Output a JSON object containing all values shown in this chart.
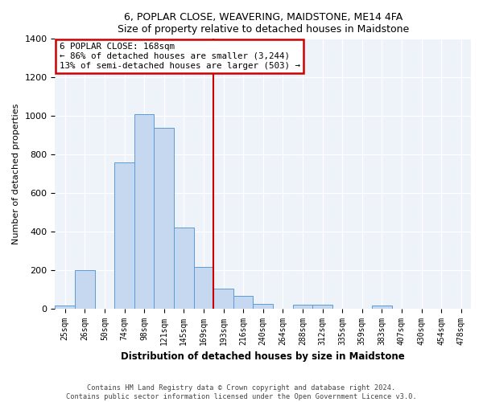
{
  "title": "6, POPLAR CLOSE, WEAVERING, MAIDSTONE, ME14 4FA",
  "subtitle": "Size of property relative to detached houses in Maidstone",
  "xlabel": "Distribution of detached houses by size in Maidstone",
  "ylabel": "Number of detached properties",
  "categories": [
    "25sqm",
    "26sqm",
    "50sqm",
    "74sqm",
    "98sqm",
    "121sqm",
    "145sqm",
    "169sqm",
    "193sqm",
    "216sqm",
    "240sqm",
    "264sqm",
    "288sqm",
    "312sqm",
    "335sqm",
    "359sqm",
    "383sqm",
    "407sqm",
    "430sqm",
    "454sqm",
    "478sqm"
  ],
  "bar_heights": [
    15,
    200,
    0,
    760,
    1010,
    940,
    420,
    215,
    105,
    65,
    25,
    0,
    20,
    20,
    0,
    0,
    15,
    0,
    0,
    0,
    0
  ],
  "bar_color": "#c5d8f0",
  "bar_edge_color": "#5b9bd5",
  "property_line_color": "#cc0000",
  "property_line_index": 7,
  "annotation_title": "6 POPLAR CLOSE: 168sqm",
  "annotation_line1": "← 86% of detached houses are smaller (3,244)",
  "annotation_line2": "13% of semi-detached houses are larger (503) →",
  "annotation_box_color": "#cc0000",
  "ylim": [
    0,
    1400
  ],
  "yticks": [
    0,
    200,
    400,
    600,
    800,
    1000,
    1200,
    1400
  ],
  "bg_color": "#eef2f9",
  "grid_color": "#ffffff",
  "footer1": "Contains HM Land Registry data © Crown copyright and database right 2024.",
  "footer2": "Contains public sector information licensed under the Open Government Licence v3.0."
}
